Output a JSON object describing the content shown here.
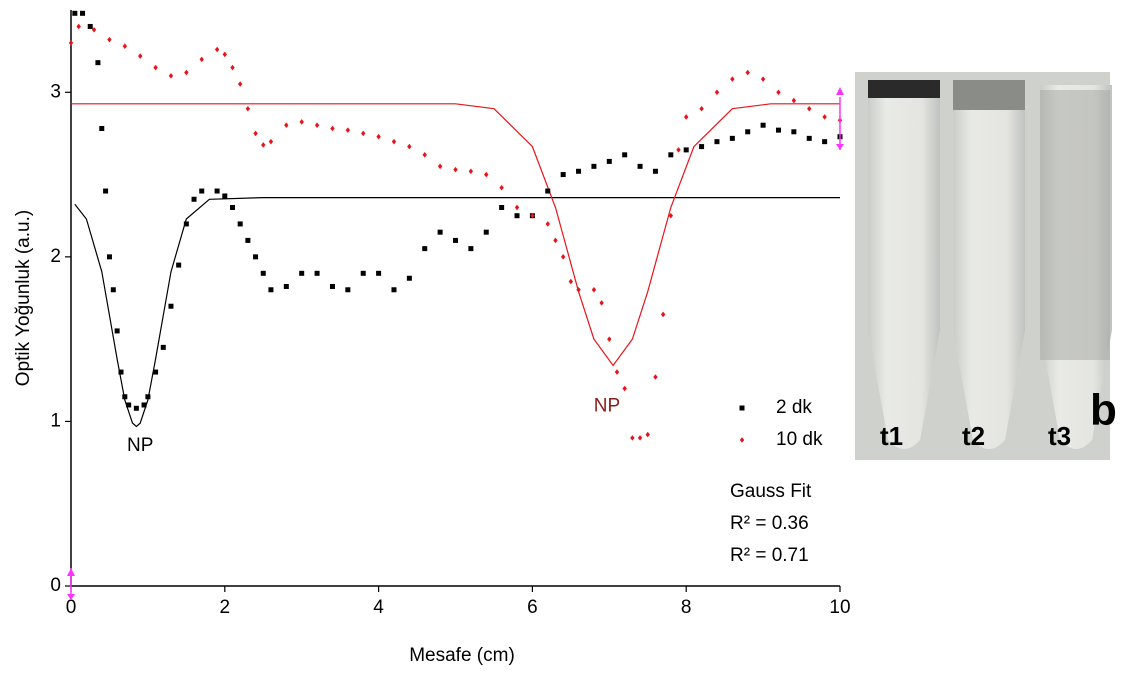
{
  "chart_data": {
    "type": "scatter",
    "x_label": "Mesafe (cm)",
    "y_label": "Optik Yoğunluk (a.u.)",
    "xlim": [
      0,
      10
    ],
    "ylim": [
      0,
      3.5
    ],
    "xticks": [
      0,
      2,
      4,
      6,
      8,
      10
    ],
    "yticks": [
      0,
      1,
      2,
      3
    ],
    "series": [
      {
        "name": "2 dk",
        "color": "#000000",
        "marker": "square",
        "x": [
          0.05,
          0.15,
          0.25,
          0.35,
          0.4,
          0.45,
          0.5,
          0.55,
          0.6,
          0.65,
          0.7,
          0.75,
          0.85,
          0.95,
          1.0,
          1.1,
          1.2,
          1.3,
          1.4,
          1.5,
          1.6,
          1.7,
          1.9,
          2.0,
          2.1,
          2.2,
          2.3,
          2.4,
          2.5,
          2.6,
          2.8,
          3.0,
          3.2,
          3.4,
          3.6,
          3.8,
          4.0,
          4.2,
          4.4,
          4.6,
          4.8,
          5.0,
          5.2,
          5.4,
          5.6,
          5.8,
          6.0,
          6.2,
          6.4,
          6.6,
          6.8,
          7.0,
          7.2,
          7.4,
          7.6,
          7.8,
          8.0,
          8.2,
          8.4,
          8.6,
          8.8,
          9.0,
          9.2,
          9.4,
          9.6,
          9.8,
          10
        ],
        "values": [
          3.48,
          3.48,
          3.4,
          3.18,
          2.78,
          2.4,
          2.0,
          1.8,
          1.55,
          1.3,
          1.15,
          1.1,
          1.08,
          1.1,
          1.15,
          1.3,
          1.45,
          1.7,
          1.95,
          2.2,
          2.35,
          2.4,
          2.4,
          2.37,
          2.3,
          2.2,
          2.1,
          2.0,
          1.9,
          1.8,
          1.82,
          1.9,
          1.9,
          1.82,
          1.8,
          1.9,
          1.9,
          1.8,
          1.87,
          2.05,
          2.15,
          2.1,
          2.05,
          2.15,
          2.3,
          2.25,
          2.25,
          2.4,
          2.5,
          2.52,
          2.55,
          2.58,
          2.62,
          2.55,
          2.52,
          2.62,
          2.65,
          2.67,
          2.7,
          2.72,
          2.76,
          2.8,
          2.77,
          2.76,
          2.72,
          2.7,
          2.73
        ]
      },
      {
        "name": "10 dk",
        "color": "#e8141b",
        "marker": "diamond",
        "x": [
          0,
          0.1,
          0.3,
          0.5,
          0.7,
          0.9,
          1.1,
          1.3,
          1.5,
          1.7,
          1.9,
          2.0,
          2.1,
          2.2,
          2.3,
          2.4,
          2.5,
          2.6,
          2.8,
          3.0,
          3.2,
          3.4,
          3.6,
          3.8,
          4.0,
          4.2,
          4.4,
          4.6,
          4.8,
          5.0,
          5.2,
          5.4,
          5.6,
          5.8,
          6.0,
          6.2,
          6.3,
          6.4,
          6.5,
          6.6,
          6.8,
          6.9,
          7.0,
          7.1,
          7.2,
          7.3,
          7.4,
          7.5,
          7.6,
          7.7,
          7.8,
          7.9,
          8.0,
          8.2,
          8.4,
          8.6,
          8.8,
          9.0,
          9.2,
          9.4,
          9.6,
          9.8,
          10
        ],
        "values": [
          3.3,
          3.4,
          3.38,
          3.32,
          3.28,
          3.22,
          3.15,
          3.1,
          3.12,
          3.2,
          3.26,
          3.23,
          3.15,
          3.05,
          2.9,
          2.75,
          2.68,
          2.7,
          2.8,
          2.82,
          2.8,
          2.78,
          2.77,
          2.75,
          2.73,
          2.7,
          2.67,
          2.62,
          2.55,
          2.53,
          2.52,
          2.5,
          2.42,
          2.3,
          2.25,
          2.2,
          2.1,
          2.0,
          1.85,
          1.8,
          1.8,
          1.72,
          1.5,
          1.3,
          1.2,
          0.9,
          0.9,
          0.92,
          1.27,
          1.65,
          2.25,
          2.65,
          2.85,
          2.9,
          3.0,
          3.08,
          3.12,
          3.08,
          3.0,
          2.95,
          2.9,
          2.85,
          2.83
        ]
      }
    ],
    "fits": [
      {
        "color": "#000000",
        "x": [
          0.05,
          0.2,
          0.4,
          0.6,
          0.7,
          0.8,
          0.85,
          0.9,
          1.0,
          1.1,
          1.3,
          1.5,
          1.8,
          2.5,
          10
        ],
        "values": [
          2.32,
          2.23,
          1.91,
          1.38,
          1.13,
          0.99,
          0.97,
          0.99,
          1.13,
          1.38,
          1.91,
          2.23,
          2.35,
          2.36,
          2.36
        ]
      },
      {
        "color": "#e8141b",
        "x": [
          0,
          5,
          5.5,
          6.0,
          6.3,
          6.6,
          6.8,
          7.05,
          7.3,
          7.5,
          7.8,
          8.1,
          8.6,
          9.1,
          10
        ],
        "values": [
          2.93,
          2.93,
          2.9,
          2.67,
          2.3,
          1.79,
          1.5,
          1.34,
          1.5,
          1.79,
          2.3,
          2.67,
          2.9,
          2.93,
          2.93
        ]
      }
    ],
    "annotations": [
      {
        "text": "NP",
        "x": 0.9,
        "y": 0.85,
        "color": "#000000"
      },
      {
        "text": "NP",
        "x": 6.97,
        "y": 1.09,
        "color": "#8b1a1a"
      }
    ],
    "fit_legend": [
      "Gauss Fit",
      "R² = 0.36",
      "R² = 0.71"
    ]
  },
  "photo": {
    "tube_labels": [
      "t1",
      "t2",
      "t3"
    ],
    "panel_label": "b"
  }
}
